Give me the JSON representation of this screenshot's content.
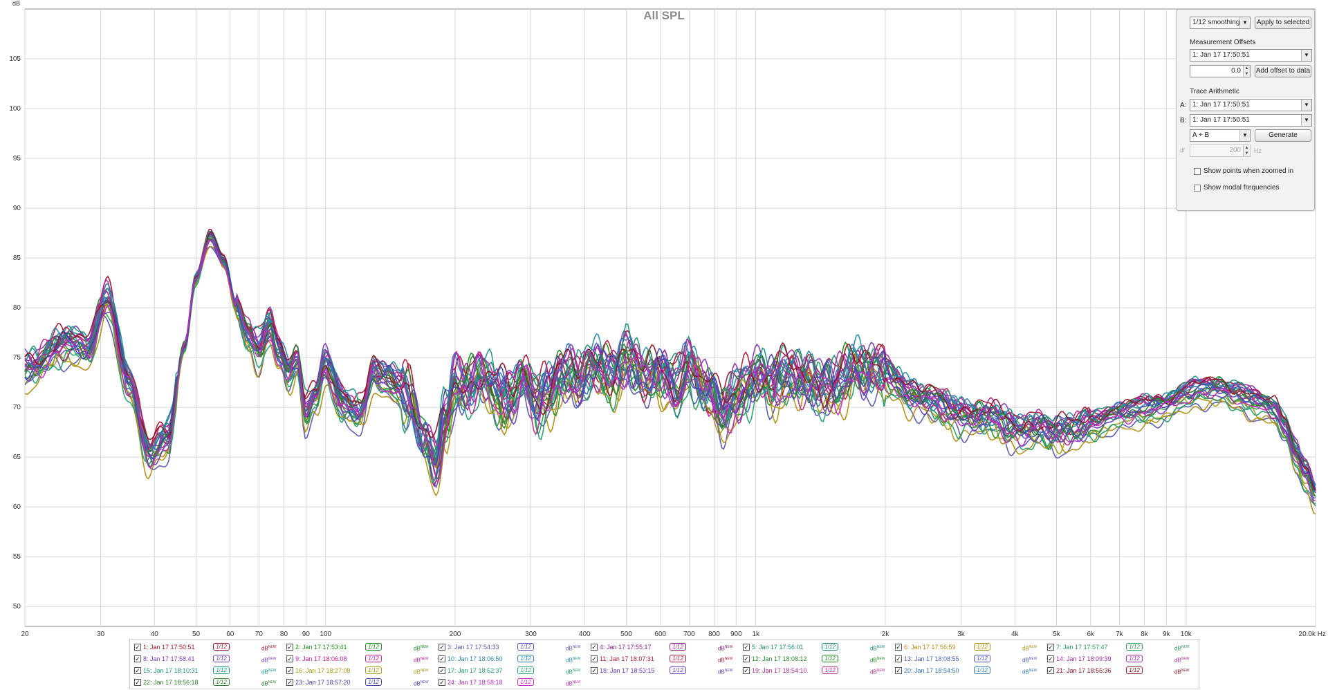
{
  "chart_data": {
    "type": "line",
    "title": "All SPL",
    "ylabel": "dB",
    "xlabel": "Hz",
    "x_scale": "log",
    "xlim": [
      20,
      20000
    ],
    "ylim": [
      48,
      110
    ],
    "y_ticks": [
      50,
      55,
      60,
      65,
      70,
      75,
      80,
      85,
      90,
      95,
      100,
      105
    ],
    "x_ticks": [
      {
        "v": 20,
        "label": "20"
      },
      {
        "v": 30,
        "label": "30"
      },
      {
        "v": 40,
        "label": "40"
      },
      {
        "v": 50,
        "label": "50"
      },
      {
        "v": 60,
        "label": "60"
      },
      {
        "v": 70,
        "label": "70"
      },
      {
        "v": 80,
        "label": "80"
      },
      {
        "v": 90,
        "label": "90"
      },
      {
        "v": 100,
        "label": "100"
      },
      {
        "v": 200,
        "label": "200"
      },
      {
        "v": 300,
        "label": "300"
      },
      {
        "v": 400,
        "label": "400"
      },
      {
        "v": 500,
        "label": "500"
      },
      {
        "v": 600,
        "label": "600"
      },
      {
        "v": 700,
        "label": "700"
      },
      {
        "v": 800,
        "label": "800"
      },
      {
        "v": 900,
        "label": "900"
      },
      {
        "v": 1000,
        "label": "1k"
      },
      {
        "v": 2000,
        "label": "2k"
      },
      {
        "v": 3000,
        "label": "3k"
      },
      {
        "v": 4000,
        "label": "4k"
      },
      {
        "v": 5000,
        "label": "5k"
      },
      {
        "v": 6000,
        "label": "6k"
      },
      {
        "v": 7000,
        "label": "7k"
      },
      {
        "v": 8000,
        "label": "8k"
      },
      {
        "v": 9000,
        "label": "9k"
      },
      {
        "v": 10000,
        "label": "10k"
      },
      {
        "v": 20000,
        "label": "20.0k Hz"
      }
    ],
    "grid": true,
    "base_curve": {
      "x": [
        20,
        25,
        28,
        31,
        35,
        39,
        43,
        47,
        50,
        54,
        58,
        62,
        66,
        70,
        74,
        78,
        82,
        86,
        90,
        95,
        100,
        110,
        120,
        130,
        140,
        155,
        170,
        180,
        190,
        200,
        215,
        230,
        250,
        270,
        290,
        310,
        330,
        360,
        390,
        420,
        460,
        500,
        550,
        600,
        650,
        700,
        760,
        830,
        900,
        1000,
        1100,
        1200,
        1350,
        1500,
        1700,
        2000,
        2300,
        2600,
        3000,
        3500,
        4000,
        4500,
        5000,
        5500,
        6000,
        7000,
        8000,
        9000,
        10000,
        11000,
        12000,
        13000,
        14000,
        15000,
        16000,
        17000,
        18000,
        19000,
        20000
      ],
      "y": [
        73.5,
        76.0,
        75.5,
        80.5,
        72.0,
        65.0,
        66.5,
        76.0,
        83.0,
        87.0,
        84.5,
        80.0,
        77.0,
        75.5,
        78.0,
        75.0,
        73.0,
        74.5,
        69.0,
        71.0,
        74.0,
        70.0,
        69.0,
        73.0,
        72.5,
        71.0,
        66.0,
        64.0,
        68.5,
        72.0,
        71.5,
        73.0,
        71.0,
        70.5,
        72.5,
        70.0,
        71.5,
        73.0,
        72.0,
        74.0,
        73.0,
        74.5,
        72.5,
        73.0,
        72.0,
        73.5,
        71.5,
        69.0,
        71.0,
        72.5,
        72.0,
        73.0,
        72.0,
        71.5,
        73.5,
        73.0,
        71.0,
        70.0,
        69.0,
        68.5,
        67.5,
        67.5,
        67.0,
        67.5,
        68.0,
        69.0,
        69.5,
        70.0,
        71.0,
        71.5,
        71.5,
        71.0,
        70.5,
        70.0,
        69.5,
        67.5,
        65.0,
        63.0,
        61.0
      ]
    },
    "series": [
      {
        "name": "1: Jan 17 17:50:51",
        "color": "#a0142c"
      },
      {
        "name": "2: Jan 17 17:53:41",
        "color": "#1c8c1c"
      },
      {
        "name": "3: Jan 17 17:54:33",
        "color": "#5656b0"
      },
      {
        "name": "4: Jan 17 17:55:17",
        "color": "#8c1c8c"
      },
      {
        "name": "5: Jan 17 17:56:01",
        "color": "#1c8c78"
      },
      {
        "name": "6: Jan 17 17:56:59",
        "color": "#b08c14"
      },
      {
        "name": "7: Jan 17 17:57:47",
        "color": "#2c9c5c"
      },
      {
        "name": "8: Jan 17 17:58:41",
        "color": "#7a3cb4"
      },
      {
        "name": "9: Jan 17 18:06:08",
        "color": "#c0209c"
      },
      {
        "name": "10: Jan 17 18:06:50",
        "color": "#2c88a8"
      },
      {
        "name": "11: Jan 17 18:07:31",
        "color": "#b01c3c"
      },
      {
        "name": "12: Jan 17 18:08:12",
        "color": "#248c24"
      },
      {
        "name": "13: Jan 17 18:08:55",
        "color": "#4c5cc0"
      },
      {
        "name": "14: Jan 17 18:09:39",
        "color": "#a02ca0"
      },
      {
        "name": "15: Jan 17 18:10:31",
        "color": "#1c9484"
      },
      {
        "name": "16: Jan 17 18:27:08",
        "color": "#a89818"
      },
      {
        "name": "17: Jan 17 18:52:37",
        "color": "#24a06c"
      },
      {
        "name": "18: Jan 17 18:53:15",
        "color": "#6c3cc4"
      },
      {
        "name": "19: Jan 17 18:54:10",
        "color": "#b42c8c"
      },
      {
        "name": "20: Jan 17 18:54:50",
        "color": "#3478b4"
      },
      {
        "name": "21: Jan 17 18:55:36",
        "color": "#8c1424"
      },
      {
        "name": "22: Jan 17 18:56:18",
        "color": "#2c7c2c"
      },
      {
        "name": "23: Jan 17 18:57:20",
        "color": "#4444a8"
      },
      {
        "name": "24: Jan 17 18:58:18",
        "color": "#c02cc0"
      }
    ]
  },
  "controls": {
    "smoothing": "1/12 smoothing",
    "apply_button": "Apply to selected",
    "offsets_heading": "Measurement Offsets",
    "offset_measurement": "1: Jan 17 17:50:51",
    "offset_value": "0.0",
    "add_offset_button": "Add offset to data",
    "arith_heading": "Trace Arithmetic",
    "a_label": "A:",
    "a_value": "1: Jan 17 17:50:51",
    "b_label": "B:",
    "b_value": "1: Jan 17 17:50:51",
    "operation": "A + B",
    "generate_button": "Generate",
    "df_label": "df",
    "df_value": "200",
    "df_unit": "Hz",
    "show_points": "Show points when zoomed in",
    "show_modal": "Show modal frequencies"
  },
  "legend": {
    "smooth_tag": "1/12",
    "db_tag": "dB",
    "db_sup": "NEW"
  }
}
